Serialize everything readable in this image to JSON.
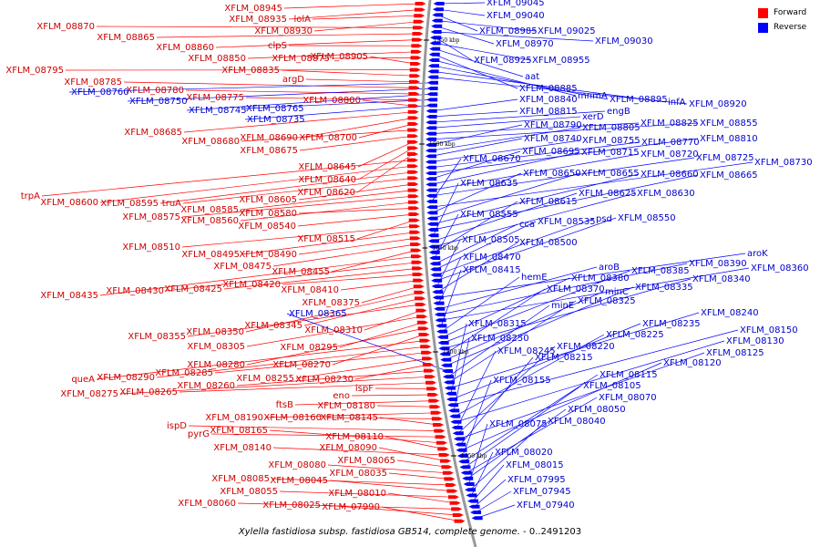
{
  "caption_italic": "Xylella fastidiosa subsp. fastidiosa GB514, complete genome.",
  "caption_rest": " - 0..2491203",
  "legend": [
    {
      "label": "Forward",
      "color": "#ff0000"
    },
    {
      "label": "Reverse",
      "color": "#0000ff"
    }
  ],
  "colors": {
    "forward_feature": "#ff0000",
    "forward_text": "#cc0000",
    "reverse_feature": "#0000ff",
    "reverse_text": "#0000cc",
    "backbone": "#999999"
  },
  "ticks": [
    "1950 kbp",
    "1900 kbp",
    "1850 kbp",
    "1800 kbp",
    "1750 kbp"
  ],
  "forward_labels": [
    "XFLM_08945",
    "XFLM_08935",
    "lolA",
    "XFLM_08930",
    "XFLM_08870",
    "XFLM_08865",
    "XFLM_08860",
    "clpS",
    "XFLM_08850",
    "XFLM_08875",
    "XFLM_08905",
    "XFLM_08795",
    "XFLM_08835",
    "argD",
    "XFLM_08785",
    "XFLM_08780",
    "XFLM_08775",
    "XFLM_08800",
    "XFLM_08685",
    "XFLM_08690",
    "XFLM_08700",
    "XFLM_08680",
    "XFLM_08675",
    "XFLM_08645",
    "XFLM_08640",
    "XFLM_08620",
    "trpA",
    "XFLM_08600",
    "XFLM_08595",
    "truA",
    "XFLM_08605",
    "XFLM_08585",
    "XFLM_08575",
    "XFLM_08560",
    "XFLM_08580",
    "XFLM_08540",
    "XFLM_08515",
    "XFLM_08510",
    "XFLM_08495",
    "XFLM_08490",
    "XFLM_08475",
    "XFLM_08455",
    "XFLM_08435",
    "XFLM_08430",
    "XFLM_08425",
    "XFLM_08420",
    "XFLM_08410",
    "XFLM_08375",
    "XFLM_08350",
    "XFLM_08345",
    "XFLM_08355",
    "XFLM_08310",
    "XFLM_08305",
    "XFLM_08295",
    "XFLM_08280",
    "XFLM_08270",
    "queA",
    "XFLM_08290",
    "XFLM_08285",
    "XFLM_08255",
    "XFLM_08230",
    "XFLM_08260",
    "XFLM_08275",
    "XFLM_08265",
    "ispF",
    "eno",
    "ftsB",
    "XFLM_08180",
    "XFLM_08190",
    "XFLM_08160",
    "XFLM_08145",
    "ispD",
    "pyrG",
    "XFLM_08165",
    "XFLM_08110",
    "XFLM_08140",
    "XFLM_08090",
    "XFLM_08065",
    "XFLM_08080",
    "XFLM_08035",
    "XFLM_08085",
    "XFLM_08045",
    "XFLM_08055",
    "XFLM_08010",
    "XFLM_08060",
    "XFLM_08025",
    "XFLM_07990"
  ],
  "reverse_labels": [
    "XFLM_09045",
    "XFLM_09040",
    "XFLM_08985",
    "XFLM_09025",
    "XFLM_08970",
    "XFLM_09030",
    "XFLM_08925",
    "XFLM_08955",
    "aat",
    "XFLM_08885",
    "mnmA",
    "XFLM_08895",
    "infA",
    "XFLM_08920",
    "XFLM_08760",
    "XFLM_08750",
    "XFLM_08745",
    "XFLM_08765",
    "XFLM_08735",
    "XFLM_08840",
    "XFLM_08815",
    "engB",
    "xerD",
    "XFLM_08825",
    "XFLM_08855",
    "XFLM_08790",
    "XFLM_08805",
    "XFLM_08740",
    "XFLM_08755",
    "XFLM_08770",
    "XFLM_08810",
    "XFLM_08695",
    "XFLM_08715",
    "XFLM_08720",
    "XFLM_08725",
    "XFLM_08670",
    "XFLM_08730",
    "XFLM_08650",
    "XFLM_08655",
    "XFLM_08660",
    "XFLM_08665",
    "XFLM_08635",
    "XFLM_08625",
    "XFLM_08630",
    "XFLM_08615",
    "XFLM_08555",
    "cca",
    "XFLM_08535",
    "psd",
    "XFLM_08550",
    "XFLM_08505",
    "XFLM_08500",
    "aroK",
    "XFLM_08470",
    "aroB",
    "XFLM_08390",
    "XFLM_08360",
    "XFLM_08415",
    "hemE",
    "XFLM_08380",
    "XFLM_08385",
    "XFLM_08340",
    "XFLM_08370",
    "minC",
    "XFLM_08335",
    "XFLM_08365",
    "minE",
    "XFLM_08325",
    "XFLM_08240",
    "XFLM_08315",
    "XFLM_08235",
    "XFLM_08150",
    "XFLM_08250",
    "XFLM_08225",
    "XFLM_08130",
    "XFLM_08245",
    "XFLM_08220",
    "XFLM_08125",
    "XFLM_08215",
    "XFLM_08120",
    "XFLM_08155",
    "XFLM_08115",
    "XFLM_08105",
    "XFLM_08070",
    "XFLM_08050",
    "XFLM_08075",
    "XFLM_08040",
    "XFLM_08020",
    "XFLM_08015",
    "XFLM_07995",
    "XFLM_07945",
    "XFLM_07940"
  ]
}
